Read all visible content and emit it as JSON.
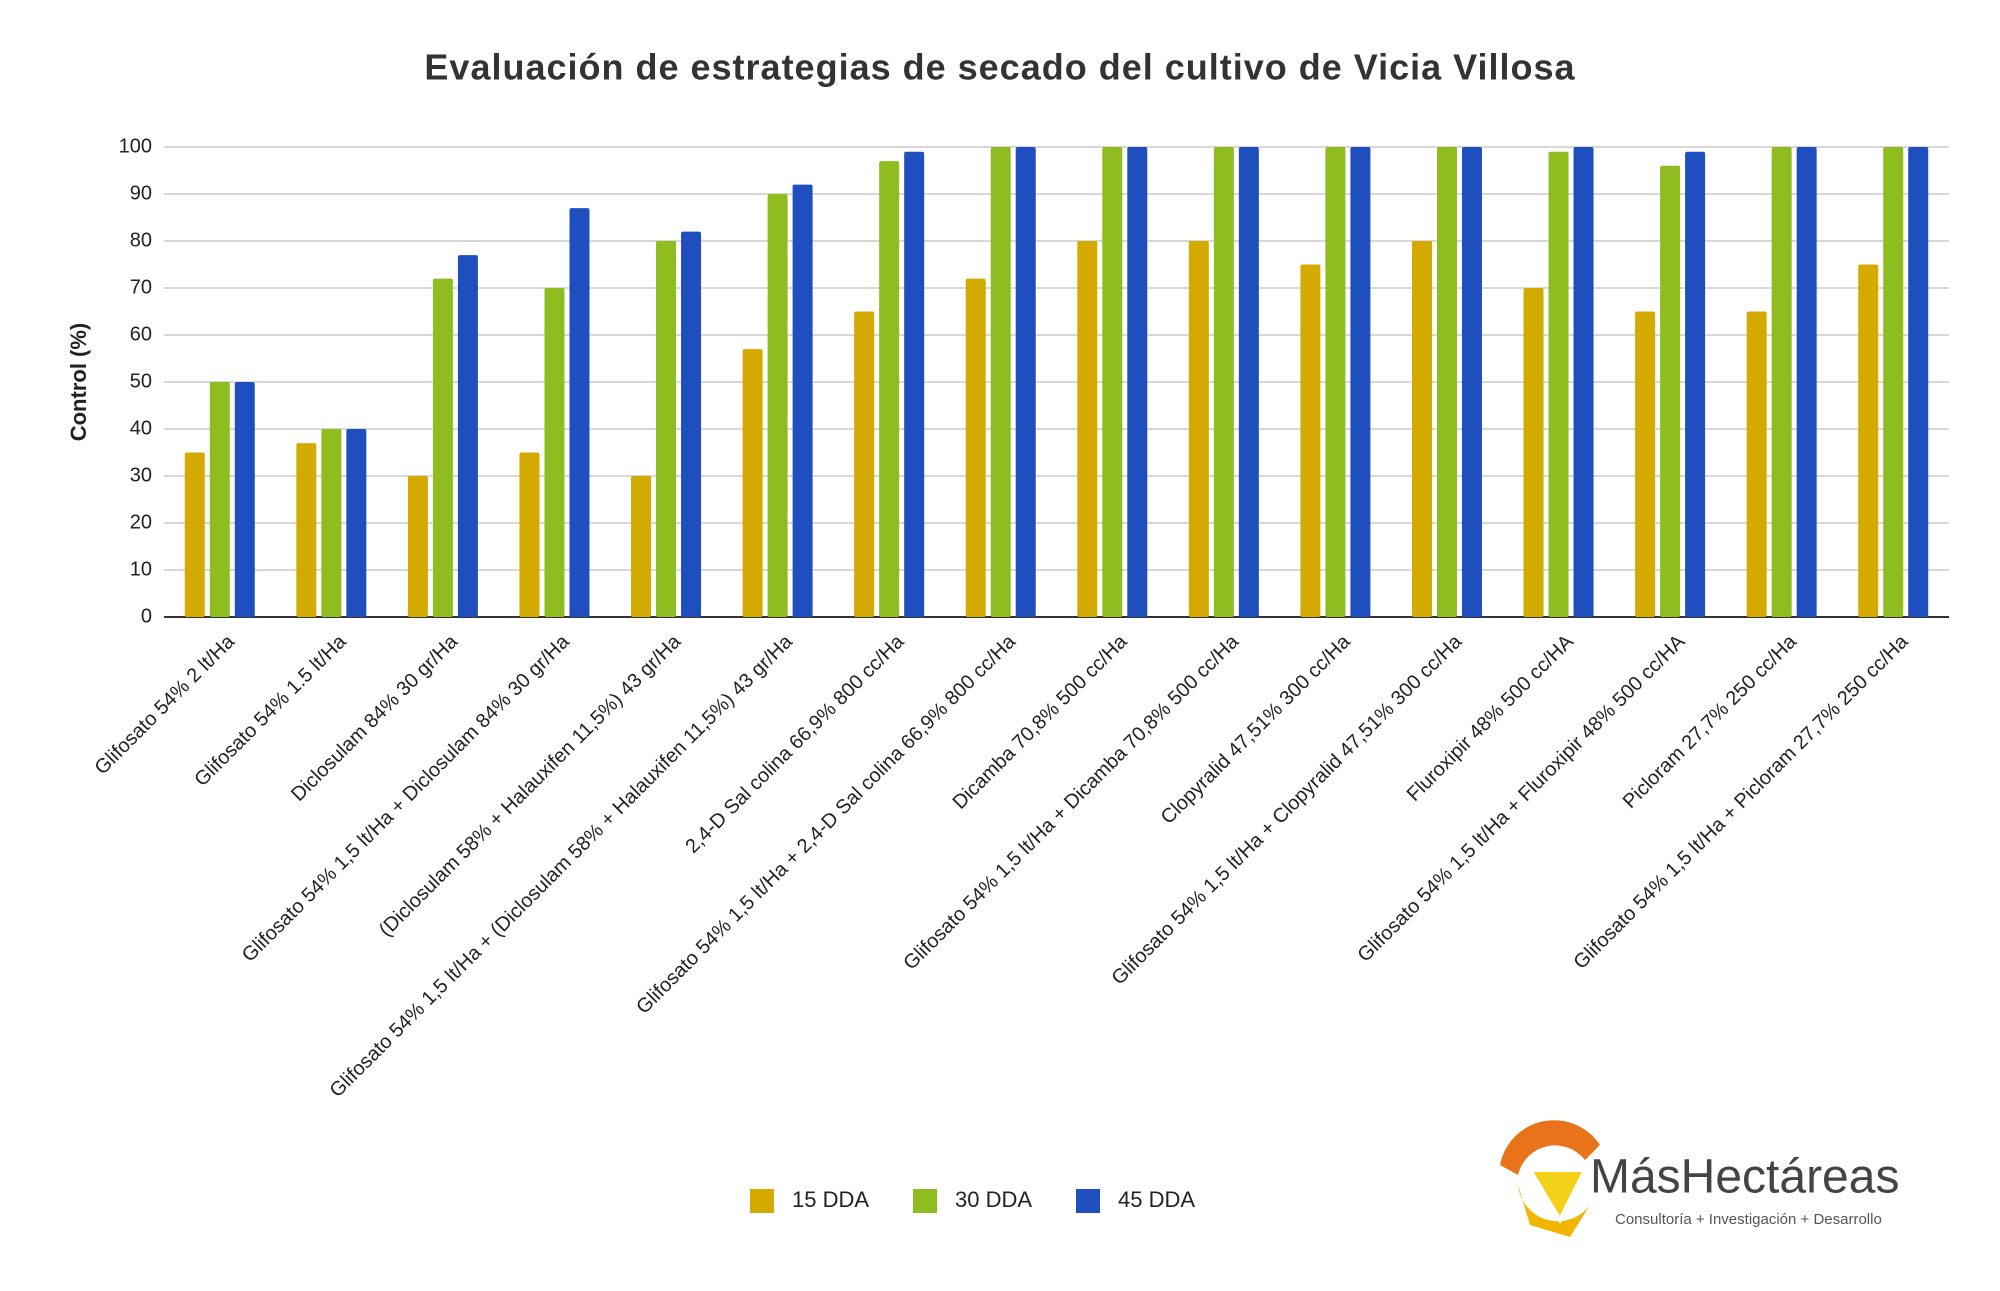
{
  "chart_data": {
    "type": "bar",
    "title": "Evaluación de estrategias de secado del cultivo de Vicia Villosa",
    "y_label": "Control (%)",
    "categories": [
      "Glifosato 54% 2 lt/Ha",
      "Glifosato 54% 1.5 lt/Ha",
      "Diclosulam 84% 30 gr/Ha",
      "Glifosato 54% 1,5 lt/Ha + Diclosulam 84% 30 gr/Ha",
      "(Diclosulam 58% + Halauxifen 11,5%) 43 gr/Ha",
      "Glifosato 54% 1,5 lt/Ha + (Diclosulam 58% + Halauxifen 11,5%) 43 gr/Ha",
      "2,4-D Sal colina 66,9% 800 cc/Ha",
      "Glifosato 54% 1,5 lt/Ha + 2,4-D Sal colina 66,9% 800 cc/Ha",
      "Dicamba 70,8% 500 cc/Ha",
      "Glifosato 54% 1,5 lt/Ha + Dicamba 70,8% 500 cc/Ha",
      "Clopyralid 47,51% 300 cc/Ha",
      "Glifosato 54% 1,5 lt/Ha + Clopyralid 47,51% 300 cc/Ha",
      "Fluroxipir 48% 500 cc/HA",
      "Glifosato 54% 1,5 lt/Ha + Fluroxipir 48% 500 cc/HA",
      "Picloram 27,7% 250 cc/Ha",
      "Glifosato 54% 1,5 lt/Ha + Picloram 27,7% 250 cc/Ha"
    ],
    "series": [
      {
        "name": "15 DDA",
        "color": "#d4a900",
        "values": [
          35,
          37,
          30,
          35,
          30,
          57,
          65,
          72,
          80,
          80,
          75,
          80,
          70,
          65,
          65,
          75
        ]
      },
      {
        "name": "30 DDA",
        "color": "#8fbc1e",
        "values": [
          50,
          40,
          72,
          70,
          80,
          90,
          97,
          100,
          100,
          100,
          100,
          100,
          99,
          96,
          100,
          100
        ]
      },
      {
        "name": "45 DDA",
        "color": "#1f4fbf",
        "values": [
          50,
          40,
          77,
          87,
          82,
          92,
          99,
          100,
          100,
          100,
          100,
          100,
          100,
          99,
          100,
          100
        ]
      }
    ],
    "ylim": [
      0,
      100
    ],
    "yticks": [
      0,
      10,
      20,
      30,
      40,
      50,
      60,
      70,
      80,
      90,
      100
    ],
    "grid": true,
    "legend": "bottom"
  },
  "logo": {
    "name": "MásHectáreas",
    "tagline": "Consultoría + Investigación + Desarrollo"
  }
}
